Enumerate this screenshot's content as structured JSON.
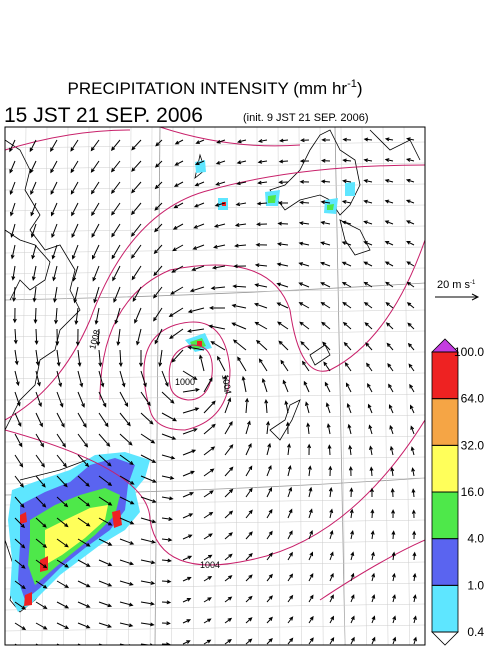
{
  "header": {
    "title": "PRECIPITATION INTENSITY (mm hr",
    "title_exponent": "-1",
    "title_close": ")",
    "valid_time": "15 JST 21 SEP. 2006",
    "init_time": "(init. 9 JST 21 SEP. 2006)"
  },
  "wind_scale": {
    "label": "20 m s",
    "exponent": "-1"
  },
  "isobar_labels": [
    "1008",
    "1000",
    "1004",
    "1004"
  ],
  "colorbar": {
    "levels": [
      {
        "value": 0.4,
        "label": "0.4"
      },
      {
        "value": 1,
        "label": "1.0"
      },
      {
        "value": 4,
        "label": "4.0"
      },
      {
        "value": 16,
        "label": "16.0"
      },
      {
        "value": 32,
        "label": "32.0"
      },
      {
        "value": 64,
        "label": "64.0"
      },
      {
        "value": 100,
        "label": "100.0"
      }
    ],
    "colors": [
      "#5ee6ff",
      "#5a64f0",
      "#4ee84a",
      "#ffff5a",
      "#f5a545",
      "#ee2222"
    ],
    "under_color": "#ffffff",
    "over_color": "#c43ce0"
  }
}
